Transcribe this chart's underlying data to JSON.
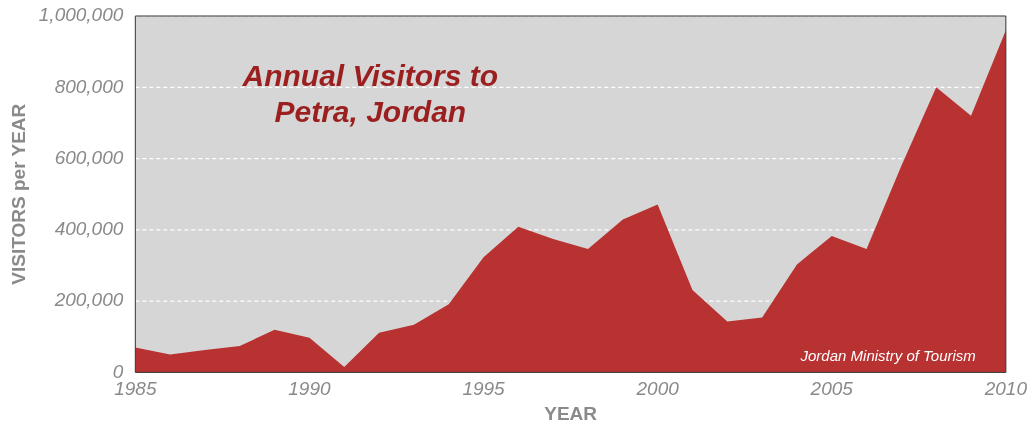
{
  "chart_data": {
    "type": "area",
    "title": "Annual Visitors to Petra, Jordan",
    "xlabel": "YEAR",
    "ylabel": "VISITORS per YEAR",
    "x": [
      1985,
      1986,
      1987,
      1988,
      1989,
      1990,
      1991,
      1992,
      1993,
      1994,
      1995,
      1996,
      1997,
      1998,
      1999,
      2000,
      2001,
      2002,
      2003,
      2004,
      2005,
      2006,
      2007,
      2008,
      2009,
      2010
    ],
    "values": [
      70000,
      50000,
      63000,
      74000,
      120000,
      97000,
      15000,
      111000,
      134000,
      191000,
      323000,
      409000,
      374000,
      346000,
      429000,
      471000,
      231000,
      143000,
      154000,
      303000,
      383000,
      346000,
      580000,
      800000,
      720000,
      960000
    ],
    "color": "#b83232",
    "xlim": [
      1985,
      2010
    ],
    "xticks": [
      1985,
      1990,
      1995,
      2000,
      2005,
      2010
    ],
    "ylim": [
      0,
      1000000
    ],
    "yticks": [
      {
        "value": 0,
        "label": "0"
      },
      {
        "value": 200000,
        "label": "200,000"
      },
      {
        "value": 400000,
        "label": "400,000"
      },
      {
        "value": 600000,
        "label": "600,000"
      },
      {
        "value": 800000,
        "label": "800,000"
      },
      {
        "value": 1000000,
        "label": "1,000,000"
      }
    ],
    "grid": "y",
    "annotations": [
      "Jordan Ministry of Tourism"
    ]
  }
}
